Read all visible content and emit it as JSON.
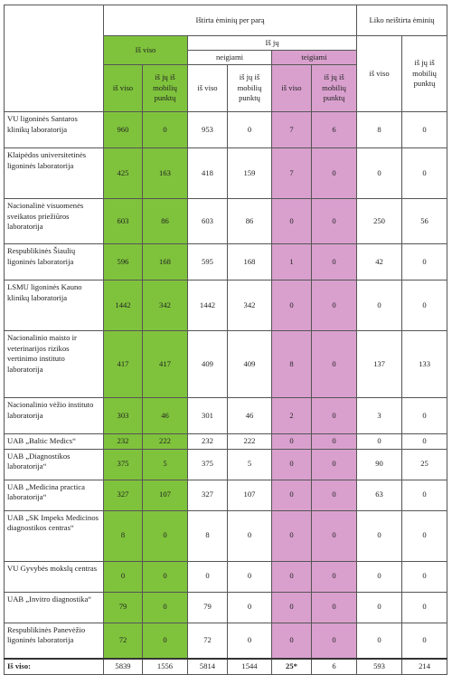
{
  "header": {
    "tested_title": "Ištirta ėminių per parą",
    "untested_title": "Liko neištirta ėminių",
    "total_label": "Iš viso",
    "of_which": "Iš jų",
    "negative": "neigiami",
    "positive": "teigiami",
    "col_total": "iš viso",
    "col_mobile": "iš jų iš mobilių punktų"
  },
  "rows": [
    {
      "label": "VU ligoninės Santaros klinikų laboratorija",
      "v": [
        "960",
        "0",
        "953",
        "0",
        "7",
        "6",
        "8",
        "0"
      ]
    },
    {
      "label": "Klaipėdos universitetinės ligoninės laboratorija",
      "v": [
        "425",
        "163",
        "418",
        "159",
        "7",
        "0",
        "0",
        "0"
      ]
    },
    {
      "label": "Nacionalinė visuomenės sveikatos priežiūros laboratorija",
      "v": [
        "603",
        "86",
        "603",
        "86",
        "0",
        "0",
        "250",
        "56"
      ]
    },
    {
      "label": "Respublikinės Šiaulių ligoninės laboratorija",
      "v": [
        "596",
        "168",
        "595",
        "168",
        "1",
        "0",
        "42",
        "0"
      ]
    },
    {
      "label": "LSMU ligoninės Kauno klinikų laboratorija",
      "v": [
        "1442",
        "342",
        "1442",
        "342",
        "0",
        "0",
        "0",
        "0"
      ]
    },
    {
      "label": "Nacionalinio maisto ir veterinarijos rizikos vertinimo instituto laboratorija",
      "v": [
        "417",
        "417",
        "409",
        "409",
        "8",
        "0",
        "137",
        "133"
      ]
    },
    {
      "label": "Nacionalinio vėžio instituto laboratorija",
      "v": [
        "303",
        "46",
        "301",
        "46",
        "2",
        "0",
        "3",
        "0"
      ]
    },
    {
      "label": "UAB „Baltic Medics“",
      "v": [
        "232",
        "222",
        "232",
        "222",
        "0",
        "0",
        "0",
        "0"
      ]
    },
    {
      "label": "UAB „Diagnostikos laboratorija“",
      "v": [
        "375",
        "5",
        "375",
        "5",
        "0",
        "0",
        "90",
        "25"
      ]
    },
    {
      "label": "UAB „Medicina practica laboratorija“",
      "v": [
        "327",
        "107",
        "327",
        "107",
        "0",
        "0",
        "63",
        "0"
      ]
    },
    {
      "label": "UAB „SK Impeks Medicinos diagnostikos centras“",
      "v": [
        "8",
        "0",
        "8",
        "0",
        "0",
        "0",
        "0",
        "0"
      ]
    },
    {
      "label": "VU Gyvybės mokslų centras",
      "v": [
        "0",
        "0",
        "0",
        "0",
        "0",
        "0",
        "0",
        "0"
      ]
    },
    {
      "label": "UAB „Invitro diagnostika“",
      "v": [
        "79",
        "0",
        "79",
        "0",
        "0",
        "0",
        "0",
        "0"
      ]
    },
    {
      "label": "Respublikinės Panevėžio ligoninės laboratorija",
      "v": [
        "72",
        "0",
        "72",
        "0",
        "0",
        "0",
        "0",
        "0"
      ]
    }
  ],
  "totals": {
    "label": "Iš viso:",
    "v": [
      "5839",
      "1556",
      "5814",
      "1544",
      "25*",
      "6",
      "593",
      "214"
    ]
  },
  "colors": {
    "green": "#7fc33c",
    "pink": "#d9a0ce"
  }
}
